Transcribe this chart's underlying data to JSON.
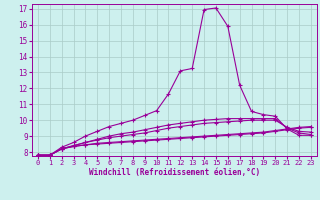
{
  "xlabel": "Windchill (Refroidissement éolien,°C)",
  "bg_color": "#cdf0ee",
  "line_color": "#990099",
  "grid_color": "#aaccc8",
  "xmin": 0,
  "xmax": 23,
  "ymin": 8,
  "ymax": 17,
  "series": [
    [
      7.8,
      7.8,
      8.2,
      8.35,
      8.45,
      8.5,
      8.55,
      8.6,
      8.65,
      8.7,
      8.75,
      8.8,
      8.85,
      8.9,
      8.95,
      9.0,
      9.05,
      9.1,
      9.15,
      9.2,
      9.3,
      9.4,
      9.5,
      9.55
    ],
    [
      7.8,
      7.8,
      8.2,
      8.35,
      8.45,
      8.55,
      8.6,
      8.65,
      8.7,
      8.75,
      8.8,
      8.85,
      8.9,
      8.95,
      9.0,
      9.05,
      9.1,
      9.15,
      9.2,
      9.25,
      9.35,
      9.45,
      9.55,
      9.6
    ],
    [
      7.8,
      7.8,
      8.2,
      8.4,
      8.6,
      8.8,
      9.0,
      9.15,
      9.25,
      9.4,
      9.55,
      9.7,
      9.8,
      9.9,
      10.0,
      10.05,
      10.1,
      10.1,
      10.1,
      10.1,
      10.1,
      9.5,
      9.2,
      9.1
    ],
    [
      7.8,
      7.8,
      8.3,
      8.6,
      9.0,
      9.3,
      9.6,
      9.8,
      10.0,
      10.3,
      10.6,
      11.65,
      13.1,
      13.25,
      16.95,
      17.05,
      15.9,
      12.2,
      10.55,
      10.35,
      10.25,
      9.45,
      9.05,
      9.05
    ],
    [
      7.8,
      7.8,
      8.2,
      8.4,
      8.6,
      8.75,
      8.9,
      9.0,
      9.1,
      9.2,
      9.35,
      9.5,
      9.6,
      9.7,
      9.8,
      9.85,
      9.9,
      9.95,
      10.0,
      10.0,
      10.0,
      9.55,
      9.3,
      9.25
    ]
  ]
}
